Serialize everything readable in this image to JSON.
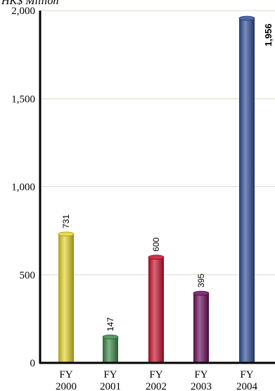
{
  "chart_data": {
    "type": "bar",
    "ylabel": "HK$ Million",
    "ylim": [
      0,
      2000
    ],
    "yticks": [
      {
        "value": 0,
        "label": "0"
      },
      {
        "value": 500,
        "label": "500"
      },
      {
        "value": 1000,
        "label": "1,000"
      },
      {
        "value": 1500,
        "label": "1,500"
      },
      {
        "value": 2000,
        "label": "2,000"
      }
    ],
    "grid": true,
    "grid_color": "#e6d6c6",
    "categories": [
      {
        "line1": "FY",
        "line2": "2000"
      },
      {
        "line1": "FY",
        "line2": "2001"
      },
      {
        "line1": "FY",
        "line2": "2002"
      },
      {
        "line1": "FY",
        "line2": "2003"
      },
      {
        "line1": "FY",
        "line2": "2004"
      }
    ],
    "values": [
      731,
      147,
      600,
      395,
      1956
    ],
    "data_labels": [
      "731",
      "147",
      "600",
      "395",
      "1,956"
    ],
    "data_labels_bold": [
      false,
      false,
      false,
      false,
      true
    ],
    "colors": [
      "#e8d42a",
      "#3d8a4a",
      "#c8102e",
      "#6b0f5e",
      "#2f4f9b"
    ]
  }
}
